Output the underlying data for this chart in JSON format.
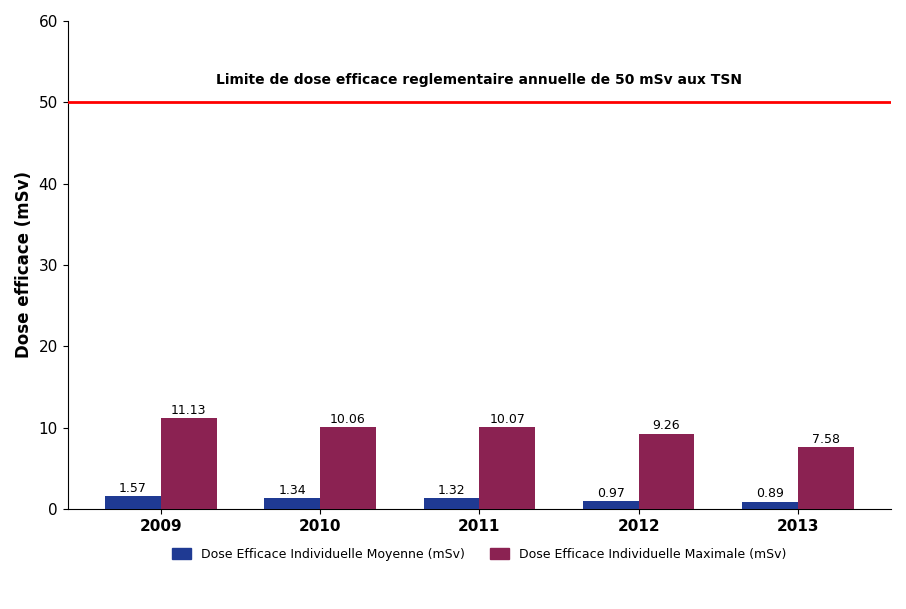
{
  "years": [
    "2009",
    "2010",
    "2011",
    "2012",
    "2013"
  ],
  "moyenne": [
    1.57,
    1.34,
    1.32,
    0.97,
    0.89
  ],
  "maximale": [
    11.13,
    10.06,
    10.07,
    9.26,
    7.58
  ],
  "color_moyenne": "#1F3A93",
  "color_maximale": "#8B2252",
  "ylabel": "Dose efficace (mSv)",
  "ylim": [
    0,
    60
  ],
  "yticks": [
    0,
    10,
    20,
    30,
    40,
    50,
    60
  ],
  "limit_value": 50,
  "limit_color": "#FF0000",
  "limit_label": "Limite de dose efficace reglementaire annuelle de 50 mSv aux TSN",
  "legend_moyenne": "Dose Efficace Individuelle Moyenne (mSv)",
  "legend_maximale": "Dose Efficace Individuelle Maximale (mSv)",
  "bar_width": 0.35,
  "background_color": "#FFFFFF",
  "label_fontsize": 9,
  "tick_fontsize": 11,
  "ylabel_fontsize": 12,
  "legend_fontsize": 9,
  "annotation_fontsize": 9
}
